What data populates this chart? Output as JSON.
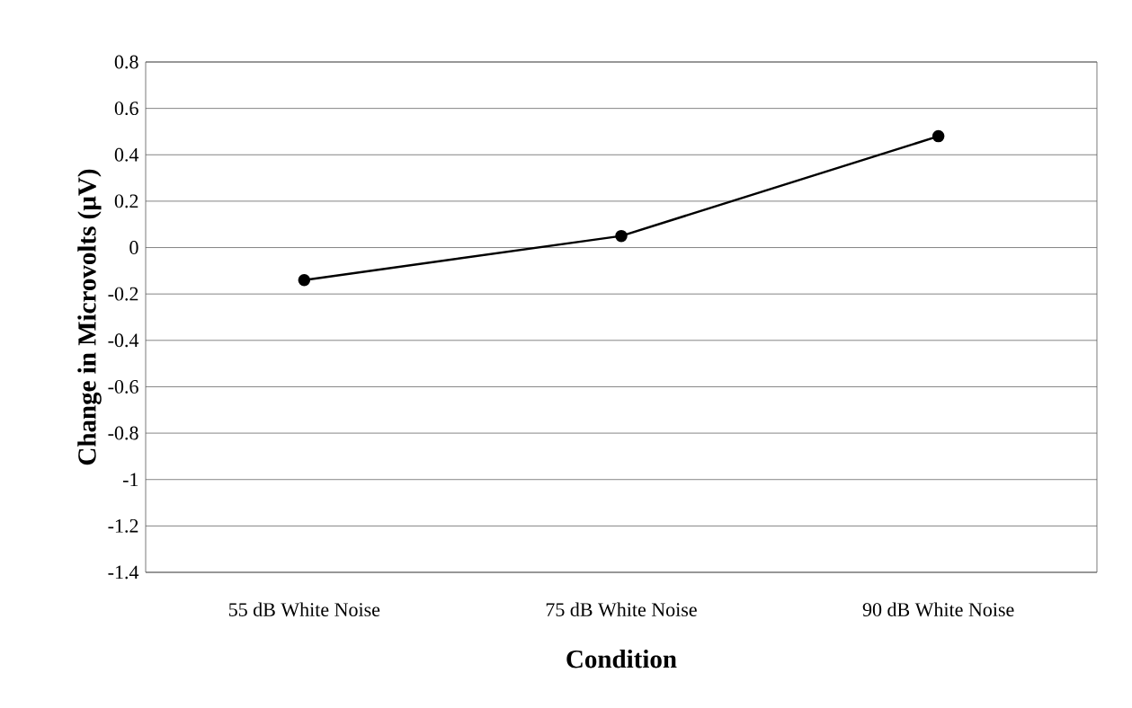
{
  "chart_data": {
    "type": "line",
    "xlabel": "Condition",
    "ylabel": "Change in Microvolts (µV)",
    "categories": [
      "55 dB White Noise",
      "75 dB White Noise",
      "90 dB White Noise"
    ],
    "series": [
      {
        "color": "#000000",
        "values": [
          -0.14,
          0.05,
          0.48
        ]
      }
    ],
    "ylim": [
      -1.4,
      0.8
    ],
    "yticks": [
      -1.4,
      -1.2,
      -1,
      -0.8,
      -0.6,
      -0.4,
      -0.2,
      0,
      0.2,
      0.4,
      0.6,
      0.8
    ],
    "grid": "y",
    "marker": "circle",
    "line_style": "solid"
  }
}
